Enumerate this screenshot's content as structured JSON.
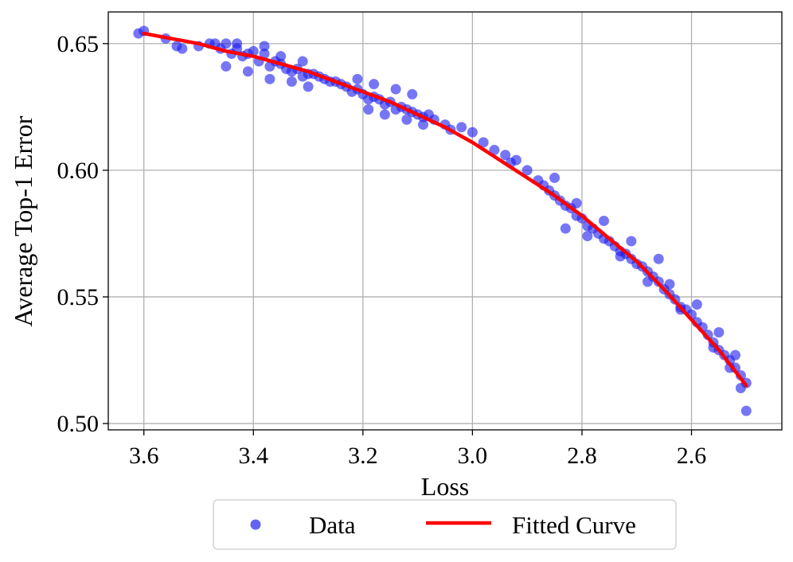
{
  "chart_data": {
    "type": "scatter",
    "title": "",
    "xlabel": "Loss",
    "ylabel": "Average Top-1 Error",
    "x_inverted": true,
    "xlim": [
      3.665,
      2.435
    ],
    "ylim": [
      0.4975,
      0.6625
    ],
    "xticks": [
      3.6,
      3.4,
      3.2,
      3.0,
      2.8,
      2.6
    ],
    "xtick_labels": [
      "3.6",
      "3.4",
      "3.2",
      "3.0",
      "2.8",
      "2.6"
    ],
    "yticks": [
      0.5,
      0.55,
      0.6,
      0.65
    ],
    "ytick_labels": [
      "0.50",
      "0.55",
      "0.60",
      "0.65"
    ],
    "grid": true,
    "legend_position": "below-center",
    "legend": [
      {
        "label": "Data",
        "kind": "marker",
        "color": "#6464f0"
      },
      {
        "label": "Fitted Curve",
        "kind": "line",
        "color": "#ff0000"
      }
    ],
    "series": [
      {
        "name": "Data",
        "kind": "scatter",
        "color": "#1a1aee",
        "x": [
          3.61,
          3.6,
          3.56,
          3.54,
          3.53,
          3.5,
          3.48,
          3.46,
          3.45,
          3.44,
          3.43,
          3.42,
          3.41,
          3.4,
          3.39,
          3.38,
          3.37,
          3.36,
          3.35,
          3.34,
          3.33,
          3.32,
          3.31,
          3.3,
          3.29,
          3.28,
          3.27,
          3.26,
          3.25,
          3.24,
          3.23,
          3.22,
          3.21,
          3.2,
          3.19,
          3.18,
          3.17,
          3.16,
          3.15,
          3.14,
          3.13,
          3.12,
          3.11,
          3.1,
          3.09,
          3.08,
          3.07,
          3.05,
          3.04,
          3.02,
          3.0,
          2.98,
          2.96,
          2.94,
          2.93,
          2.92,
          2.9,
          2.88,
          2.87,
          2.86,
          2.85,
          2.84,
          2.83,
          2.82,
          2.81,
          2.8,
          2.79,
          2.78,
          2.77,
          2.76,
          2.75,
          2.74,
          2.73,
          2.72,
          2.71,
          2.7,
          2.69,
          2.68,
          2.67,
          2.66,
          2.65,
          2.64,
          2.63,
          2.62,
          2.61,
          2.6,
          2.59,
          2.58,
          2.57,
          2.56,
          2.55,
          2.54,
          2.53,
          2.52,
          2.51,
          2.5,
          2.5,
          3.45,
          3.41,
          3.37,
          3.33,
          3.3,
          3.19,
          3.16,
          3.12,
          3.09,
          2.83,
          2.79,
          2.73,
          2.68,
          2.62,
          2.56,
          2.53,
          2.51,
          3.47,
          3.43,
          3.38,
          3.35,
          3.31,
          3.21,
          3.18,
          3.14,
          3.11,
          2.85,
          2.81,
          2.76,
          2.71,
          2.66,
          2.64,
          2.59,
          2.55,
          2.52
        ],
        "y": [
          0.654,
          0.655,
          0.652,
          0.649,
          0.648,
          0.649,
          0.65,
          0.648,
          0.65,
          0.646,
          0.648,
          0.645,
          0.646,
          0.647,
          0.643,
          0.646,
          0.641,
          0.643,
          0.642,
          0.64,
          0.639,
          0.64,
          0.637,
          0.638,
          0.638,
          0.637,
          0.636,
          0.635,
          0.635,
          0.634,
          0.633,
          0.631,
          0.632,
          0.63,
          0.628,
          0.629,
          0.628,
          0.626,
          0.627,
          0.624,
          0.625,
          0.624,
          0.623,
          0.622,
          0.621,
          0.622,
          0.62,
          0.618,
          0.616,
          0.617,
          0.615,
          0.611,
          0.608,
          0.606,
          0.603,
          0.604,
          0.6,
          0.596,
          0.594,
          0.592,
          0.59,
          0.588,
          0.586,
          0.585,
          0.582,
          0.581,
          0.578,
          0.577,
          0.575,
          0.573,
          0.572,
          0.57,
          0.568,
          0.567,
          0.565,
          0.563,
          0.562,
          0.56,
          0.558,
          0.556,
          0.553,
          0.551,
          0.549,
          0.546,
          0.545,
          0.543,
          0.54,
          0.538,
          0.535,
          0.532,
          0.529,
          0.527,
          0.525,
          0.522,
          0.519,
          0.516,
          0.505,
          0.641,
          0.639,
          0.636,
          0.635,
          0.633,
          0.624,
          0.622,
          0.62,
          0.618,
          0.577,
          0.574,
          0.566,
          0.556,
          0.545,
          0.53,
          0.522,
          0.514,
          0.65,
          0.65,
          0.649,
          0.645,
          0.643,
          0.636,
          0.634,
          0.632,
          0.63,
          0.597,
          0.587,
          0.58,
          0.572,
          0.565,
          0.555,
          0.547,
          0.536,
          0.527
        ]
      },
      {
        "name": "Fitted Curve",
        "kind": "line",
        "color": "#ff0000",
        "x": [
          3.6,
          3.55,
          3.5,
          3.45,
          3.4,
          3.35,
          3.3,
          3.25,
          3.2,
          3.15,
          3.1,
          3.05,
          3.0,
          2.95,
          2.9,
          2.85,
          2.8,
          2.75,
          2.7,
          2.65,
          2.6,
          2.55,
          2.5
        ],
        "y": [
          0.654,
          0.652,
          0.65,
          0.647,
          0.645,
          0.642,
          0.639,
          0.635,
          0.631,
          0.627,
          0.622,
          0.617,
          0.611,
          0.604,
          0.597,
          0.59,
          0.582,
          0.573,
          0.564,
          0.553,
          0.541,
          0.529,
          0.515
        ]
      }
    ]
  }
}
